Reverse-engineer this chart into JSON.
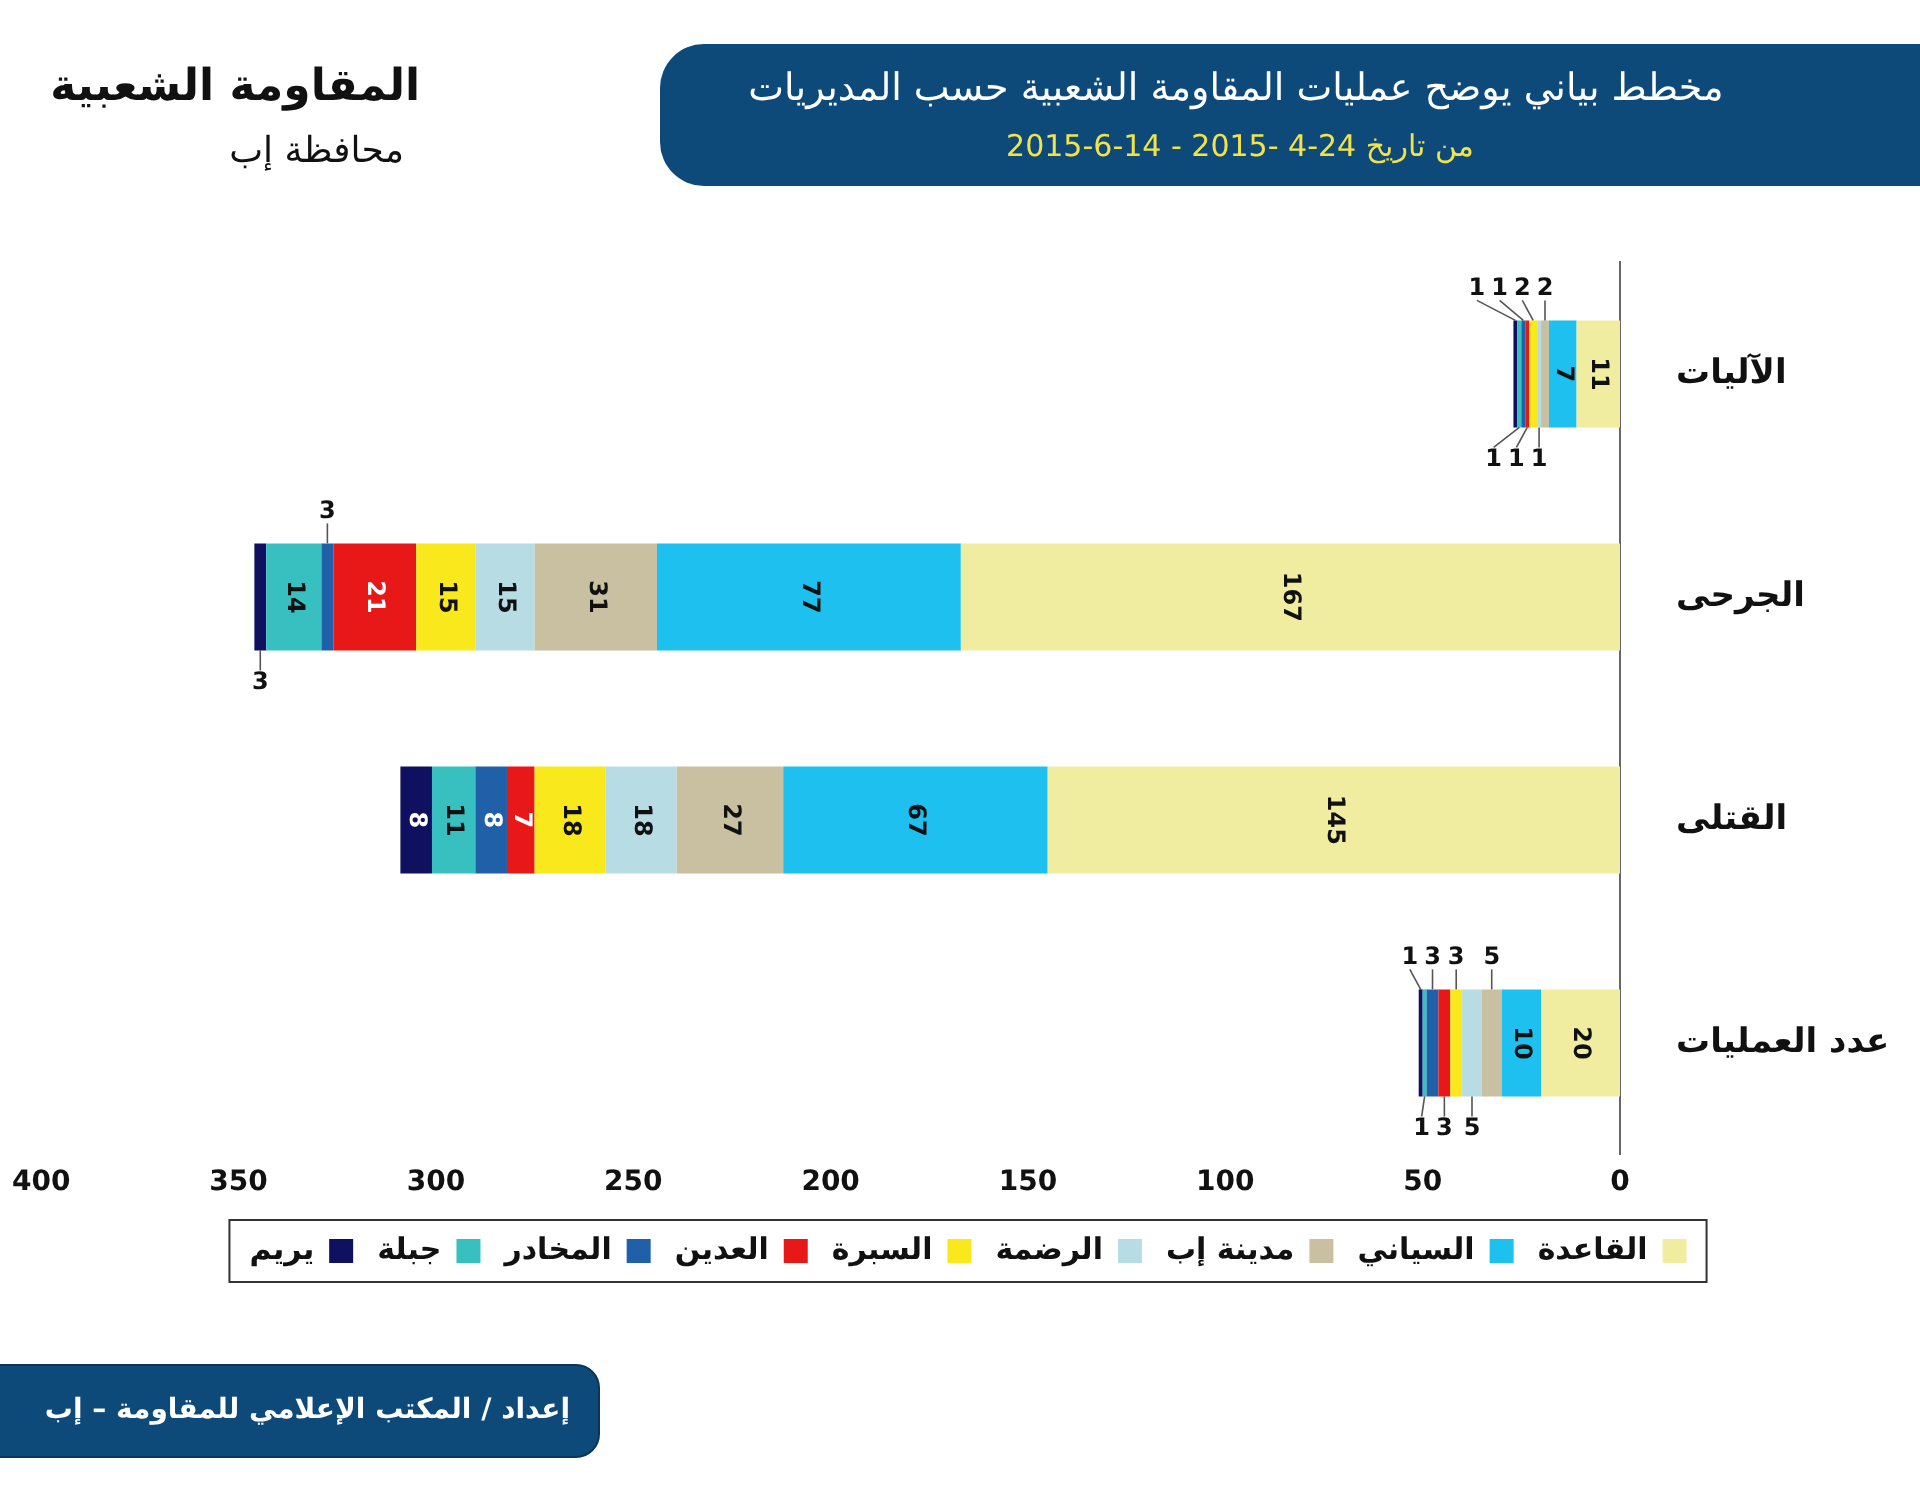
{
  "chart_data": {
    "type": "bar",
    "orientation": "horizontal",
    "stacked": true,
    "title": "مخطط بياني يوضح عمليات المقاومة الشعبية حسب المديريات",
    "subtitle": "من تاريخ 24-4 -2015 - 14-6-2015",
    "categories": [
      "الآليات",
      "الجرحى",
      "القتلى",
      "عدد العمليات"
    ],
    "series": [
      {
        "name": "القاعدة",
        "color": "#f0eca0",
        "values": [
          11,
          167,
          145,
          20
        ]
      },
      {
        "name": "السياني",
        "color": "#1ec0f0",
        "values": [
          7,
          77,
          67,
          10
        ]
      },
      {
        "name": "مدينة إب",
        "color": "#c8c0a0",
        "values": [
          2,
          31,
          27,
          5
        ]
      },
      {
        "name": "الرضمة",
        "color": "#b8dce4",
        "values": [
          1,
          15,
          18,
          5
        ]
      },
      {
        "name": "السبرة",
        "color": "#f8e81c",
        "values": [
          2,
          15,
          18,
          3
        ]
      },
      {
        "name": "العدين",
        "color": "#e81818",
        "values": [
          1,
          21,
          7,
          3
        ]
      },
      {
        "name": "المخادر",
        "color": "#2060a8",
        "values": [
          1,
          3,
          8,
          3
        ]
      },
      {
        "name": "جبلة",
        "color": "#38c0c0",
        "values": [
          1,
          14,
          11,
          1
        ]
      },
      {
        "name": "يريم",
        "color": "#101060",
        "values": [
          1,
          3,
          8,
          1
        ]
      }
    ],
    "xlim": [
      400,
      0
    ],
    "xticks": [
      400,
      350,
      300,
      250,
      200,
      150,
      100,
      50,
      0
    ],
    "data_labels": true,
    "legend": "bottom",
    "annotations": [
      "المقاومة الشعبية",
      "محافظة إب",
      "إعداد / المكتب الإعلامي للمقاومة – إب"
    ]
  }
}
